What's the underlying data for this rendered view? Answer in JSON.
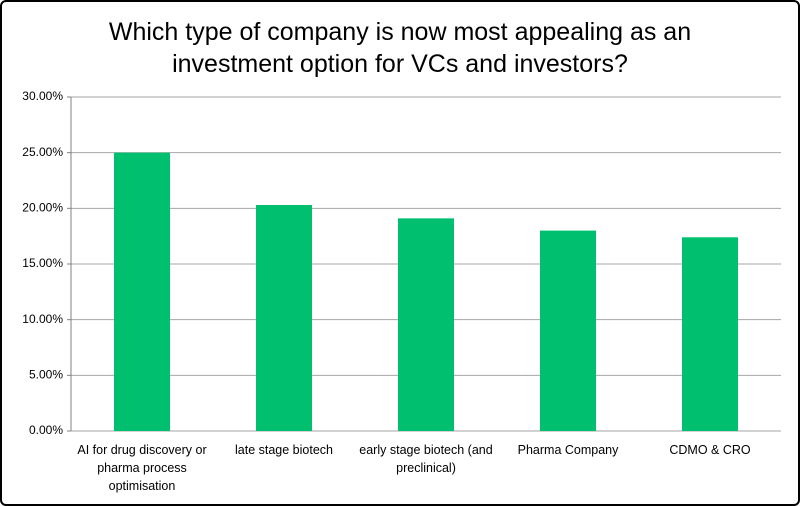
{
  "chart_data": {
    "type": "bar",
    "title": "Which type of company is now most appealing as an investment option for VCs and investors?",
    "categories": [
      "AI for drug discovery or pharma process optimisation",
      "late stage biotech",
      "early stage biotech (and preclinical)",
      "Pharma Company",
      "CDMO & CRO"
    ],
    "values": [
      25.0,
      20.3,
      19.1,
      18.0,
      17.4
    ],
    "color": "#00bf6f",
    "ylim": [
      0,
      30
    ],
    "yticks": [
      {
        "value": 0,
        "label": "0.00%"
      },
      {
        "value": 5,
        "label": "5.00%"
      },
      {
        "value": 10,
        "label": "10.00%"
      },
      {
        "value": 15,
        "label": "15.00%"
      },
      {
        "value": 20,
        "label": "20.00%"
      },
      {
        "value": 25,
        "label": "25.00%"
      },
      {
        "value": 30,
        "label": "30.00%"
      }
    ],
    "grid": true
  }
}
